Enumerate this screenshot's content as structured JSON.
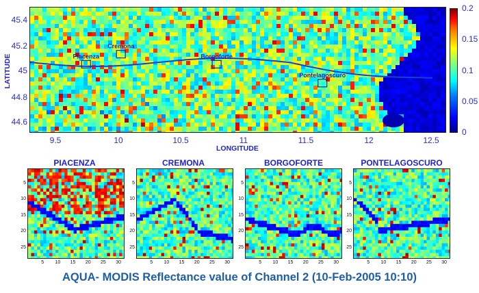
{
  "map": {
    "ylabel": "LATITUDE",
    "xlabel": "LONGITUDE",
    "yticks": [
      "45.4",
      "45.2",
      "45",
      "44.8",
      "44.6"
    ],
    "xticks": [
      "9.5",
      "10",
      "10.5",
      "11",
      "11.5",
      "12",
      "12.5"
    ],
    "locations": [
      "Piacenza",
      "Cremona",
      "Borgoforte",
      "Pontelagoscuro"
    ]
  },
  "colorbar": {
    "ticks": [
      "0.2",
      "0.15",
      "0.1",
      "0.05",
      "0"
    ]
  },
  "panels": [
    {
      "title": "PIACENZA"
    },
    {
      "title": "CREMONA"
    },
    {
      "title": "BORGOFORTE"
    },
    {
      "title": "PONTELAGOSCURO"
    }
  ],
  "panel_axes": {
    "yticks": [
      "5",
      "10",
      "15",
      "20",
      "25"
    ],
    "xticks": [
      "5",
      "10",
      "15",
      "20",
      "25",
      "30"
    ]
  },
  "caption": "AQUA- MODIS Reflectance value of Channel 2 (10-Feb-2005 10:10)",
  "chart_data": {
    "type": "heatmap",
    "title": "AQUA- MODIS Reflectance value of Channel 2 (10-Feb-2005 10:10)",
    "xlabel": "LONGITUDE",
    "ylabel": "LATITUDE",
    "xlim": [
      9.25,
      12.6
    ],
    "ylim": [
      44.5,
      45.5
    ],
    "colorbar_range": [
      0,
      0.2
    ],
    "colormap": "jet",
    "sites": [
      {
        "name": "Piacenza",
        "lon": 9.7,
        "lat": 45.05
      },
      {
        "name": "Cremona",
        "lon": 9.98,
        "lat": 45.13
      },
      {
        "name": "Borgoforte",
        "lon": 10.75,
        "lat": 45.05
      },
      {
        "name": "Pontelagoscuro",
        "lon": 11.6,
        "lat": 44.9
      }
    ]
  }
}
